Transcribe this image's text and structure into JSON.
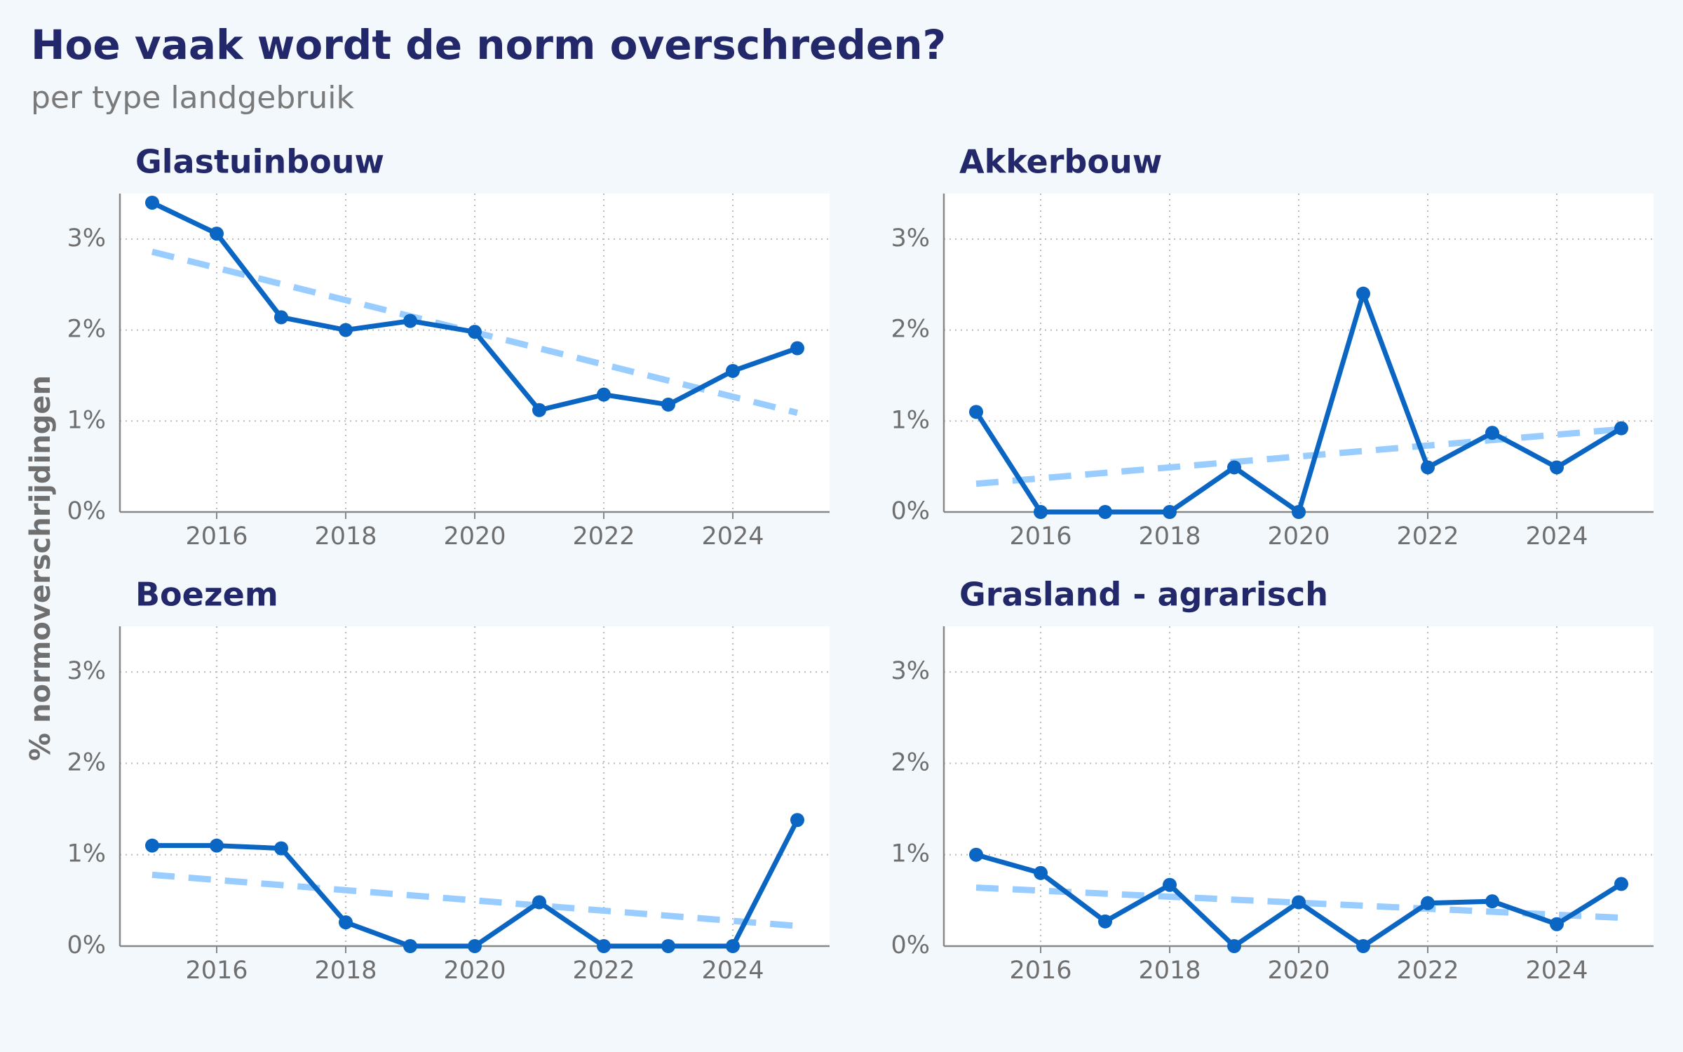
{
  "title": "Hoe vaak wordt de norm overschreden?",
  "subtitle": "per type landgebruik",
  "y_label": "% normoverschrijdingen",
  "chart_data": [
    {
      "type": "line",
      "title": "Glastuinbouw",
      "x": [
        2015,
        2016,
        2017,
        2018,
        2019,
        2020,
        2021,
        2022,
        2023,
        2024,
        2025
      ],
      "series": [
        {
          "color": "#0a66c2",
          "values": [
            3.4,
            3.06,
            2.14,
            2.0,
            2.1,
            1.98,
            1.12,
            1.29,
            1.18,
            1.55,
            1.8
          ]
        }
      ],
      "trend": {
        "color": "#99ccff",
        "x": [
          2015,
          2025
        ],
        "values": [
          2.86,
          1.09
        ]
      },
      "xlim": [
        2014.5,
        2025.5
      ],
      "ylim": [
        0,
        3.5
      ],
      "xticks": [
        2016,
        2018,
        2020,
        2022,
        2024
      ],
      "yticks": [
        {
          "value": 0,
          "label": "0%"
        },
        {
          "value": 1,
          "label": "1%"
        },
        {
          "value": 2,
          "label": "2%"
        },
        {
          "value": 3,
          "label": "3%"
        }
      ],
      "grid": true
    },
    {
      "type": "line",
      "title": "Akkerbouw",
      "x": [
        2015,
        2016,
        2017,
        2018,
        2019,
        2020,
        2021,
        2022,
        2023,
        2024,
        2025
      ],
      "series": [
        {
          "color": "#0a66c2",
          "values": [
            1.1,
            0,
            0,
            0,
            0.49,
            0,
            2.4,
            0.49,
            0.87,
            0.49,
            0.92
          ]
        }
      ],
      "trend": {
        "color": "#99ccff",
        "x": [
          2015,
          2025
        ],
        "values": [
          0.31,
          0.91
        ]
      },
      "xlim": [
        2014.5,
        2025.5
      ],
      "ylim": [
        0,
        3.5
      ],
      "xticks": [
        2016,
        2018,
        2020,
        2022,
        2024
      ],
      "yticks": [
        {
          "value": 0,
          "label": "0%"
        },
        {
          "value": 1,
          "label": "1%"
        },
        {
          "value": 2,
          "label": "2%"
        },
        {
          "value": 3,
          "label": "3%"
        }
      ],
      "grid": true
    },
    {
      "type": "line",
      "title": "Boezem",
      "x": [
        2015,
        2016,
        2017,
        2018,
        2019,
        2020,
        2021,
        2022,
        2023,
        2024,
        2025
      ],
      "series": [
        {
          "color": "#0a66c2",
          "values": [
            1.1,
            1.1,
            1.07,
            0.26,
            0,
            0,
            0.48,
            0,
            0,
            0,
            1.38
          ]
        }
      ],
      "trend": {
        "color": "#99ccff",
        "x": [
          2015,
          2025
        ],
        "values": [
          0.78,
          0.22
        ]
      },
      "xlim": [
        2014.5,
        2025.5
      ],
      "ylim": [
        0,
        3.5
      ],
      "xticks": [
        2016,
        2018,
        2020,
        2022,
        2024
      ],
      "yticks": [
        {
          "value": 0,
          "label": "0%"
        },
        {
          "value": 1,
          "label": "1%"
        },
        {
          "value": 2,
          "label": "2%"
        },
        {
          "value": 3,
          "label": "3%"
        }
      ],
      "grid": true
    },
    {
      "type": "line",
      "title": "Grasland - agrarisch",
      "x": [
        2015,
        2016,
        2017,
        2018,
        2019,
        2020,
        2021,
        2022,
        2023,
        2024,
        2025
      ],
      "series": [
        {
          "color": "#0a66c2",
          "values": [
            1.0,
            0.8,
            0.27,
            0.67,
            0,
            0.48,
            0,
            0.47,
            0.49,
            0.24,
            0.68
          ]
        }
      ],
      "trend": {
        "color": "#99ccff",
        "x": [
          2015,
          2025
        ],
        "values": [
          0.64,
          0.31
        ]
      },
      "xlim": [
        2014.5,
        2025.5
      ],
      "ylim": [
        0,
        3.5
      ],
      "xticks": [
        2016,
        2018,
        2020,
        2022,
        2024
      ],
      "yticks": [
        {
          "value": 0,
          "label": "0%"
        },
        {
          "value": 1,
          "label": "1%"
        },
        {
          "value": 2,
          "label": "2%"
        },
        {
          "value": 3,
          "label": "3%"
        }
      ],
      "grid": true
    }
  ]
}
